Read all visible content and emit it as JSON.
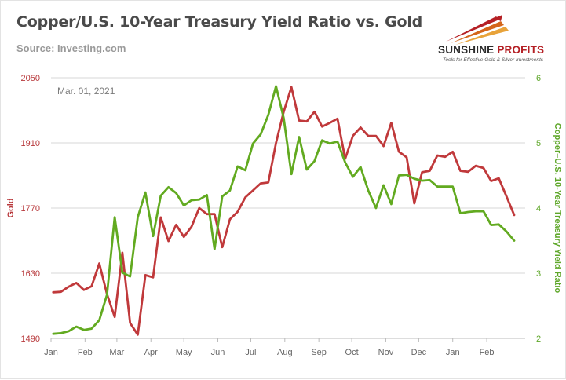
{
  "header": {
    "title": "Copper/U.S. 10-Year Treasury Yield Ratio vs. Gold",
    "source": "Source: Investing.com"
  },
  "logo": {
    "name_part1": "SUNSHINE",
    "name_part2": " PROFITS",
    "tagline": "Tools for Effective Gold & Silver Investments"
  },
  "colors": {
    "gold": "#c0393b",
    "ratio": "#62aa20",
    "grid": "#d7d7d7"
  },
  "chart_data": {
    "type": "line",
    "title": "Copper/U.S. 10-Year Treasury Yield Ratio vs. Gold",
    "annotation": "Mar. 01, 2021",
    "x_ticks": [
      "Jan",
      "Feb",
      "Mar",
      "Apr",
      "May",
      "Jun",
      "Jul",
      "Aug",
      "Sep",
      "Oct",
      "Nov",
      "Dec",
      "Jan",
      "Feb"
    ],
    "y_left": {
      "label": "Gold",
      "ticks": [
        1490,
        1630,
        1770,
        1910,
        2050
      ],
      "range": [
        1490,
        2050
      ]
    },
    "y_right": {
      "label": "Copper–U.S. 10-Year Treasury Yield Ratio",
      "ticks": [
        2,
        3,
        4,
        5,
        6
      ],
      "range": [
        2,
        6
      ]
    },
    "grid": "horizontal",
    "series": [
      {
        "name": "Gold",
        "axis": "left",
        "x": [
          "2020-01-03",
          "2020-01-10",
          "2020-01-17",
          "2020-01-24",
          "2020-01-31",
          "2020-02-07",
          "2020-02-14",
          "2020-02-21",
          "2020-02-28",
          "2020-03-06",
          "2020-03-13",
          "2020-03-20",
          "2020-03-27",
          "2020-04-03",
          "2020-04-10",
          "2020-04-17",
          "2020-04-24",
          "2020-05-01",
          "2020-05-08",
          "2020-05-15",
          "2020-05-22",
          "2020-05-29",
          "2020-06-05",
          "2020-06-12",
          "2020-06-19",
          "2020-06-26",
          "2020-07-03",
          "2020-07-10",
          "2020-07-17",
          "2020-07-24",
          "2020-07-31",
          "2020-08-07",
          "2020-08-14",
          "2020-08-21",
          "2020-08-28",
          "2020-09-04",
          "2020-09-11",
          "2020-09-18",
          "2020-09-25",
          "2020-10-02",
          "2020-10-09",
          "2020-10-16",
          "2020-10-23",
          "2020-10-30",
          "2020-11-06",
          "2020-11-13",
          "2020-11-20",
          "2020-11-27",
          "2020-12-04",
          "2020-12-11",
          "2020-12-18",
          "2020-12-25",
          "2021-01-01",
          "2021-01-08",
          "2021-01-15",
          "2021-01-22",
          "2021-01-29",
          "2021-02-05",
          "2021-02-12",
          "2021-02-19",
          "2021-02-26"
        ],
        "values": [
          1589,
          1590,
          1601,
          1609,
          1594,
          1602,
          1651,
          1585,
          1536,
          1674,
          1523,
          1498,
          1626,
          1621,
          1750,
          1699,
          1734,
          1708,
          1730,
          1770,
          1757,
          1757,
          1686,
          1746,
          1762,
          1793,
          1808,
          1823,
          1825,
          1910,
          1977,
          2030,
          1958,
          1956,
          1977,
          1945,
          1953,
          1962,
          1876,
          1925,
          1943,
          1925,
          1925,
          1903,
          1953,
          1891,
          1879,
          1780,
          1847,
          1850,
          1883,
          1880,
          1891,
          1850,
          1848,
          1861,
          1856,
          1828,
          1834,
          1795,
          1755
        ]
      },
      {
        "name": "Copper–U.S. 10-Year Treasury Yield Ratio",
        "axis": "right",
        "x": [
          "2020-01-03",
          "2020-01-10",
          "2020-01-17",
          "2020-01-24",
          "2020-01-31",
          "2020-02-07",
          "2020-02-14",
          "2020-02-21",
          "2020-02-28",
          "2020-03-06",
          "2020-03-13",
          "2020-03-20",
          "2020-03-27",
          "2020-04-03",
          "2020-04-10",
          "2020-04-17",
          "2020-04-24",
          "2020-05-01",
          "2020-05-08",
          "2020-05-15",
          "2020-05-22",
          "2020-05-29",
          "2020-06-05",
          "2020-06-12",
          "2020-06-19",
          "2020-06-26",
          "2020-07-03",
          "2020-07-10",
          "2020-07-17",
          "2020-07-24",
          "2020-07-31",
          "2020-08-07",
          "2020-08-14",
          "2020-08-21",
          "2020-08-28",
          "2020-09-04",
          "2020-09-11",
          "2020-09-18",
          "2020-09-25",
          "2020-10-02",
          "2020-10-09",
          "2020-10-16",
          "2020-10-23",
          "2020-10-30",
          "2020-11-06",
          "2020-11-13",
          "2020-11-20",
          "2020-11-27",
          "2020-12-04",
          "2020-12-11",
          "2020-12-18",
          "2020-12-25",
          "2021-01-01",
          "2021-01-08",
          "2021-01-15",
          "2021-01-22",
          "2021-01-29",
          "2021-02-05",
          "2021-02-12",
          "2021-02-19",
          "2021-02-26"
        ],
        "values": [
          2.07,
          2.08,
          2.11,
          2.18,
          2.13,
          2.15,
          2.28,
          2.67,
          3.86,
          3.01,
          2.95,
          3.86,
          4.24,
          3.57,
          4.19,
          4.32,
          4.23,
          4.04,
          4.12,
          4.13,
          4.2,
          3.37,
          4.18,
          4.27,
          4.64,
          4.58,
          4.99,
          5.13,
          5.43,
          5.87,
          5.38,
          4.52,
          5.09,
          4.59,
          4.72,
          5.04,
          4.99,
          5.02,
          4.7,
          4.48,
          4.63,
          4.27,
          4.0,
          4.35,
          4.06,
          4.5,
          4.51,
          4.45,
          4.42,
          4.43,
          4.33,
          4.33,
          4.33,
          3.92,
          3.94,
          3.95,
          3.95,
          3.74,
          3.75,
          3.64,
          3.5
        ]
      }
    ]
  }
}
